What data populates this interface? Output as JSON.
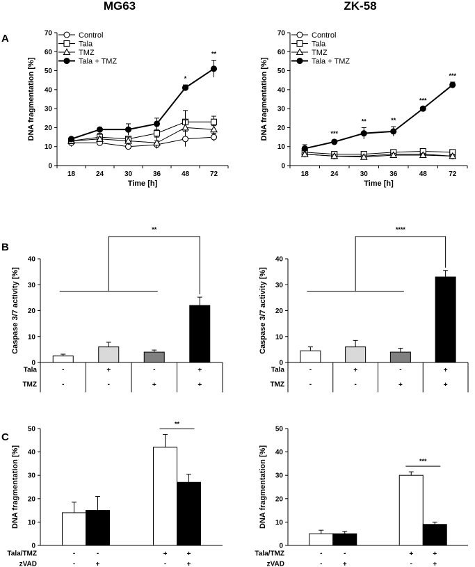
{
  "titles": {
    "left": "MG63",
    "right": "ZK-58"
  },
  "panel_labels": {
    "a": "A",
    "b": "B",
    "c": "C"
  },
  "legend": [
    "Control",
    "Tala",
    "TMZ",
    "Tala + TMZ"
  ],
  "chart_data": [
    {
      "id": "a_mg63",
      "type": "line",
      "panel": "A",
      "cell_line": "MG63",
      "xlabel": "Time [h]",
      "ylabel": "DNA fragmentation [%]",
      "ylim": [
        0,
        70
      ],
      "yticks": [
        0,
        10,
        20,
        30,
        40,
        50,
        60,
        70
      ],
      "categories": [
        "18",
        "24",
        "30",
        "36",
        "48",
        "72"
      ],
      "series": [
        {
          "name": "Control",
          "marker": "circle-open",
          "values": [
            12,
            12,
            10,
            11,
            14,
            15
          ],
          "errors": [
            2,
            1,
            1,
            2,
            4,
            2
          ]
        },
        {
          "name": "Tala",
          "marker": "square-open",
          "values": [
            13,
            15,
            14,
            17,
            23,
            23
          ],
          "errors": [
            1,
            2,
            1,
            2,
            6,
            3
          ]
        },
        {
          "name": "TMZ",
          "marker": "triangle-open",
          "values": [
            13,
            14,
            13,
            12,
            20,
            19
          ],
          "errors": [
            1,
            1,
            2,
            3,
            4,
            2
          ]
        },
        {
          "name": "Tala + TMZ",
          "marker": "circle-filled",
          "values": [
            14,
            19,
            19,
            22,
            41,
            51
          ],
          "errors": [
            1,
            1,
            3,
            3,
            1.5,
            4.5
          ]
        }
      ],
      "significance": [
        "",
        "",
        "",
        "",
        "*",
        "**"
      ]
    },
    {
      "id": "a_zk58",
      "type": "line",
      "panel": "A",
      "cell_line": "ZK-58",
      "xlabel": "Time [h]",
      "ylabel": "DNA fragmentation [%]",
      "ylim": [
        0,
        70
      ],
      "yticks": [
        0,
        10,
        20,
        30,
        40,
        50,
        60,
        70
      ],
      "categories": [
        "18",
        "24",
        "30",
        "36",
        "48",
        "72"
      ],
      "series": [
        {
          "name": "Control",
          "marker": "circle-open",
          "values": [
            6,
            5,
            5,
            6,
            6,
            5
          ],
          "errors": [
            1,
            1,
            1,
            1,
            1,
            1
          ]
        },
        {
          "name": "Tala",
          "marker": "square-open",
          "values": [
            7,
            6,
            6,
            7,
            7.5,
            7
          ],
          "errors": [
            1,
            1,
            1,
            1,
            1,
            1
          ]
        },
        {
          "name": "TMZ",
          "marker": "triangle-open",
          "values": [
            6,
            5,
            4.5,
            5.5,
            5.5,
            5
          ],
          "errors": [
            1,
            1,
            1,
            1,
            1,
            1
          ]
        },
        {
          "name": "Tala + TMZ",
          "marker": "circle-filled",
          "values": [
            9,
            12.5,
            17,
            18,
            30,
            42.5
          ],
          "errors": [
            2,
            1,
            3,
            2.5,
            1,
            1.5
          ]
        }
      ],
      "significance": [
        "",
        "***",
        "**",
        "**",
        "***",
        "***"
      ]
    },
    {
      "id": "b_mg63",
      "type": "bar",
      "panel": "B",
      "cell_line": "MG63",
      "ylabel": "Caspase 3/7 activity [%]",
      "ylim": [
        0,
        40
      ],
      "yticks": [
        0,
        10,
        20,
        30,
        40
      ],
      "values": [
        2.5,
        6,
        4,
        22
      ],
      "errors": [
        0.7,
        1.8,
        0.8,
        3.2
      ],
      "bar_colors": [
        "#ffffff",
        "#d9d9d9",
        "#808080",
        "#000000"
      ],
      "table": [
        {
          "label": "Tala",
          "cells": [
            "-",
            "+",
            "-",
            "+"
          ]
        },
        {
          "label": "TMZ",
          "cells": [
            "-",
            "-",
            "+",
            "+"
          ]
        }
      ],
      "significance": "**"
    },
    {
      "id": "b_zk58",
      "type": "bar",
      "panel": "B",
      "cell_line": "ZK-58",
      "ylabel": "Caspase 3/7 activity [%]",
      "ylim": [
        0,
        40
      ],
      "yticks": [
        0,
        10,
        20,
        30,
        40
      ],
      "values": [
        4.5,
        6,
        4,
        33
      ],
      "errors": [
        1.5,
        2.5,
        1.5,
        2.5
      ],
      "bar_colors": [
        "#ffffff",
        "#d9d9d9",
        "#808080",
        "#000000"
      ],
      "table": [
        {
          "label": "Tala",
          "cells": [
            "-",
            "+",
            "-",
            "+"
          ]
        },
        {
          "label": "TMZ",
          "cells": [
            "-",
            "-",
            "+",
            "+"
          ]
        }
      ],
      "significance": "****"
    },
    {
      "id": "c_mg63",
      "type": "bar",
      "panel": "C",
      "cell_line": "MG63",
      "ylabel": "DNA fragmentation [%]",
      "ylim": [
        0,
        50
      ],
      "yticks": [
        0,
        10,
        20,
        30,
        40,
        50
      ],
      "values": [
        14,
        15,
        42,
        27
      ],
      "errors": [
        4.5,
        6,
        5.5,
        3.5
      ],
      "bar_colors": [
        "#ffffff",
        "#000000",
        "#ffffff",
        "#000000"
      ],
      "table": [
        {
          "label": "Tala/TMZ",
          "cells": [
            "-",
            "-",
            "+",
            "+"
          ]
        },
        {
          "label": "zVAD",
          "cells": [
            "-",
            "+",
            "-",
            "+"
          ]
        }
      ],
      "significance": "**"
    },
    {
      "id": "c_zk58",
      "type": "bar",
      "panel": "C",
      "cell_line": "ZK-58",
      "ylabel": "DNA fragmentation [%]",
      "ylim": [
        0,
        50
      ],
      "yticks": [
        0,
        10,
        20,
        30,
        40,
        50
      ],
      "values": [
        5,
        5,
        30,
        9
      ],
      "errors": [
        1.5,
        1,
        1.5,
        1
      ],
      "bar_colors": [
        "#ffffff",
        "#000000",
        "#ffffff",
        "#000000"
      ],
      "table": [
        {
          "label": "Tala/TMZ",
          "cells": [
            "-",
            "-",
            "+",
            "+"
          ]
        },
        {
          "label": "zVAD",
          "cells": [
            "-",
            "+",
            "-",
            "+"
          ]
        }
      ],
      "significance": "***"
    }
  ]
}
